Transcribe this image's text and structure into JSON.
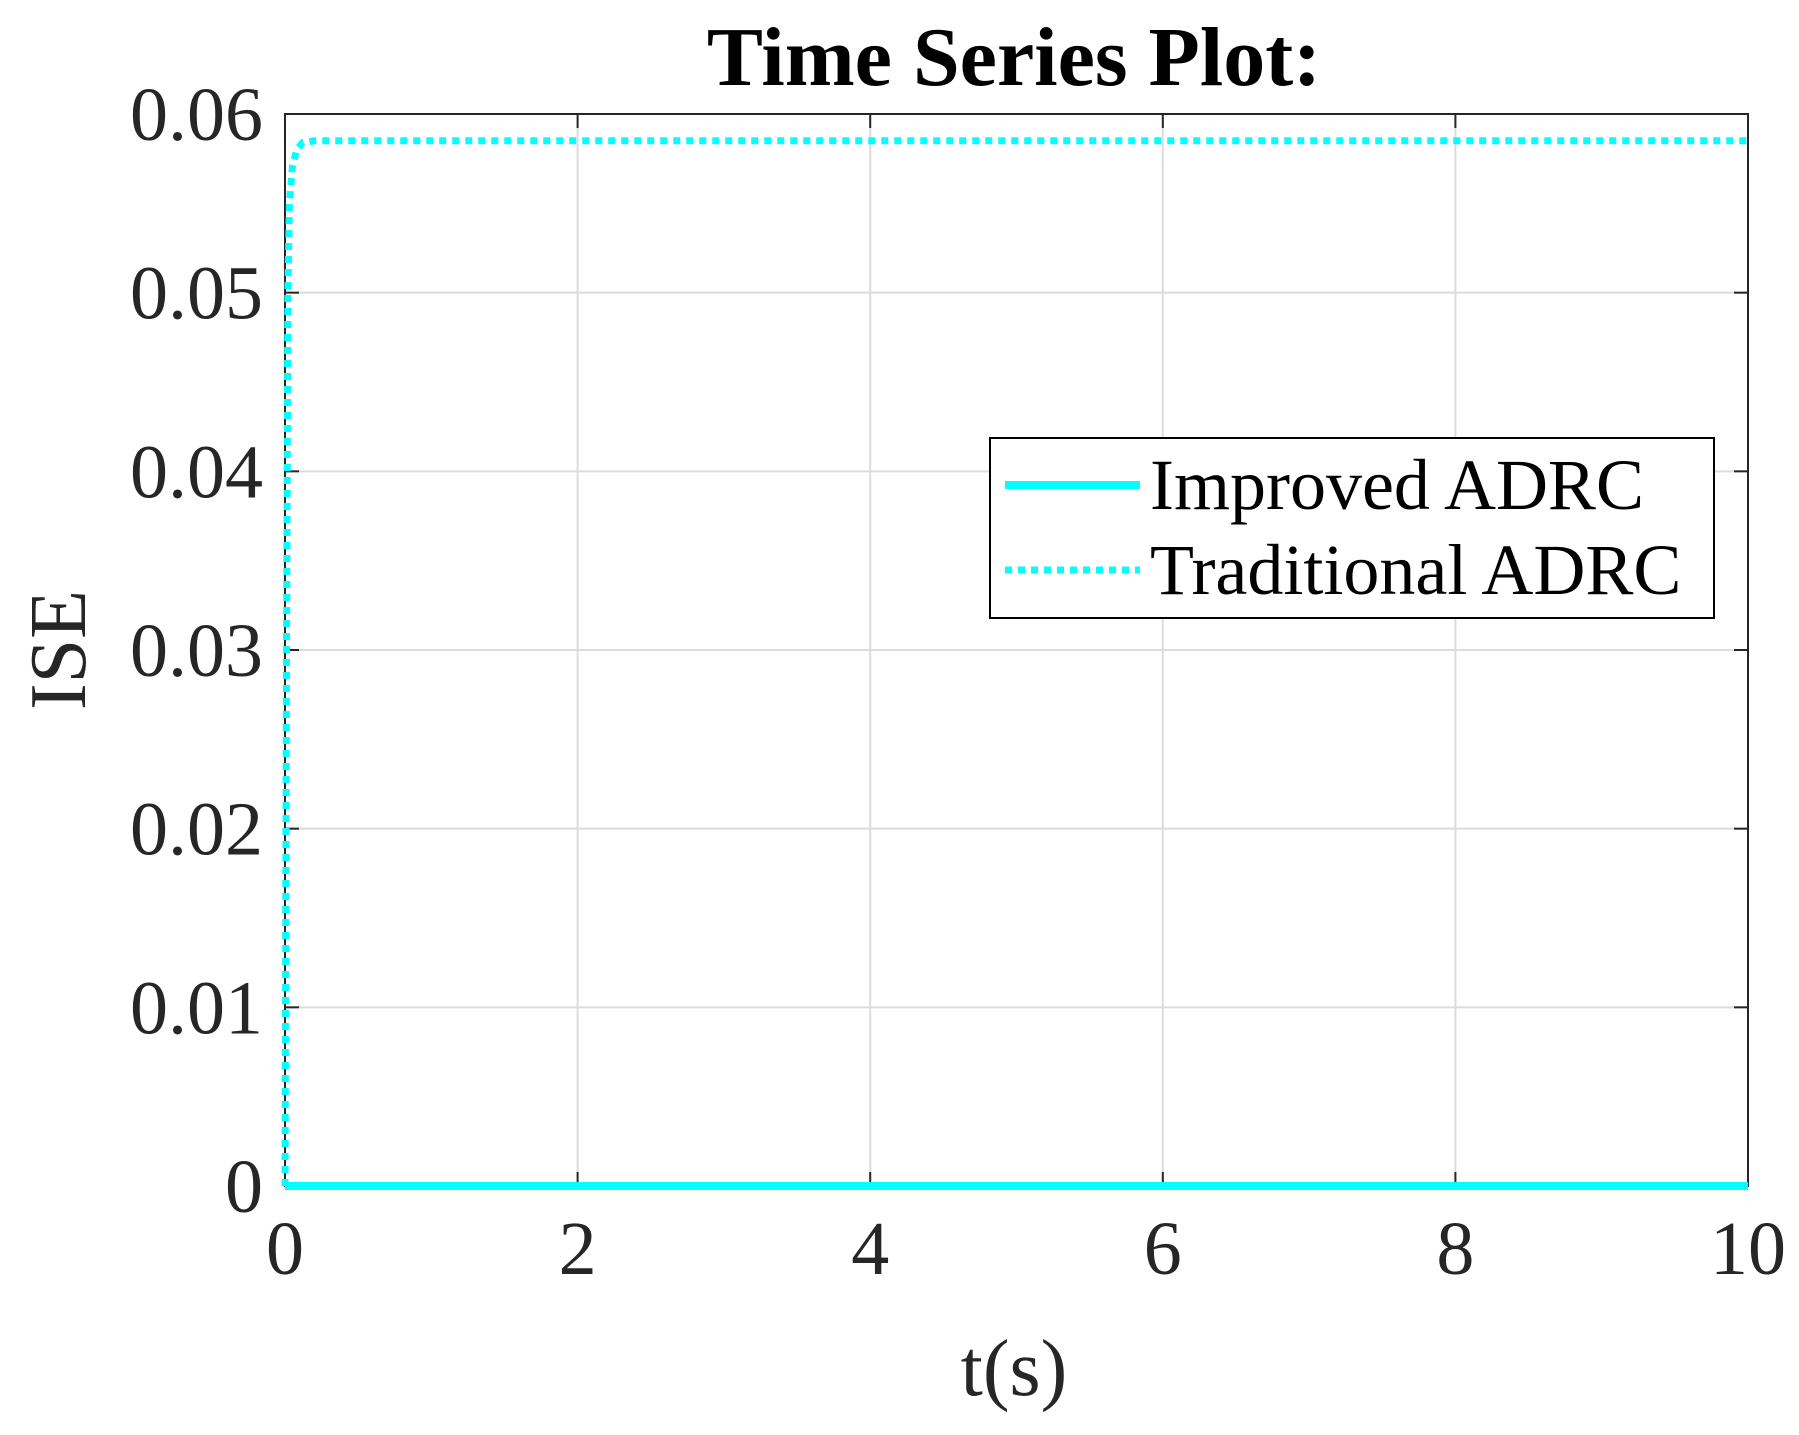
{
  "chart_data": {
    "type": "line",
    "title": "Time Series Plot:",
    "xlabel": "t(s)",
    "ylabel": "ISE",
    "xlim": [
      0,
      10
    ],
    "ylim": [
      0,
      0.06
    ],
    "xticks": [
      0,
      2,
      4,
      6,
      8,
      10
    ],
    "xtick_labels": [
      "0",
      "2",
      "4",
      "6",
      "8",
      "10"
    ],
    "yticks": [
      0,
      0.01,
      0.02,
      0.03,
      0.04,
      0.05,
      0.06
    ],
    "ytick_labels": [
      "0",
      "0.01",
      "0.02",
      "0.03",
      "0.04",
      "0.05",
      "0.06"
    ],
    "grid": true,
    "legend_position": "right",
    "series": [
      {
        "name": "Improved ADRC",
        "color": "#00ffff",
        "style": "solid",
        "x": [
          0,
          0.5,
          1,
          2,
          3,
          4,
          5,
          6,
          7,
          8,
          9,
          10
        ],
        "y": [
          0,
          0,
          0,
          0,
          0,
          0,
          0,
          0,
          0,
          0,
          0,
          0
        ]
      },
      {
        "name": "Traditional ADRC",
        "color": "#00ffff",
        "style": "dotted",
        "x": [
          0,
          0.01,
          0.02,
          0.03,
          0.05,
          0.08,
          0.12,
          0.2,
          1,
          2,
          4,
          6,
          8,
          10
        ],
        "y": [
          0,
          0.03,
          0.05,
          0.055,
          0.057,
          0.058,
          0.0584,
          0.0585,
          0.0585,
          0.0585,
          0.0585,
          0.0585,
          0.0585,
          0.0585
        ]
      }
    ]
  }
}
